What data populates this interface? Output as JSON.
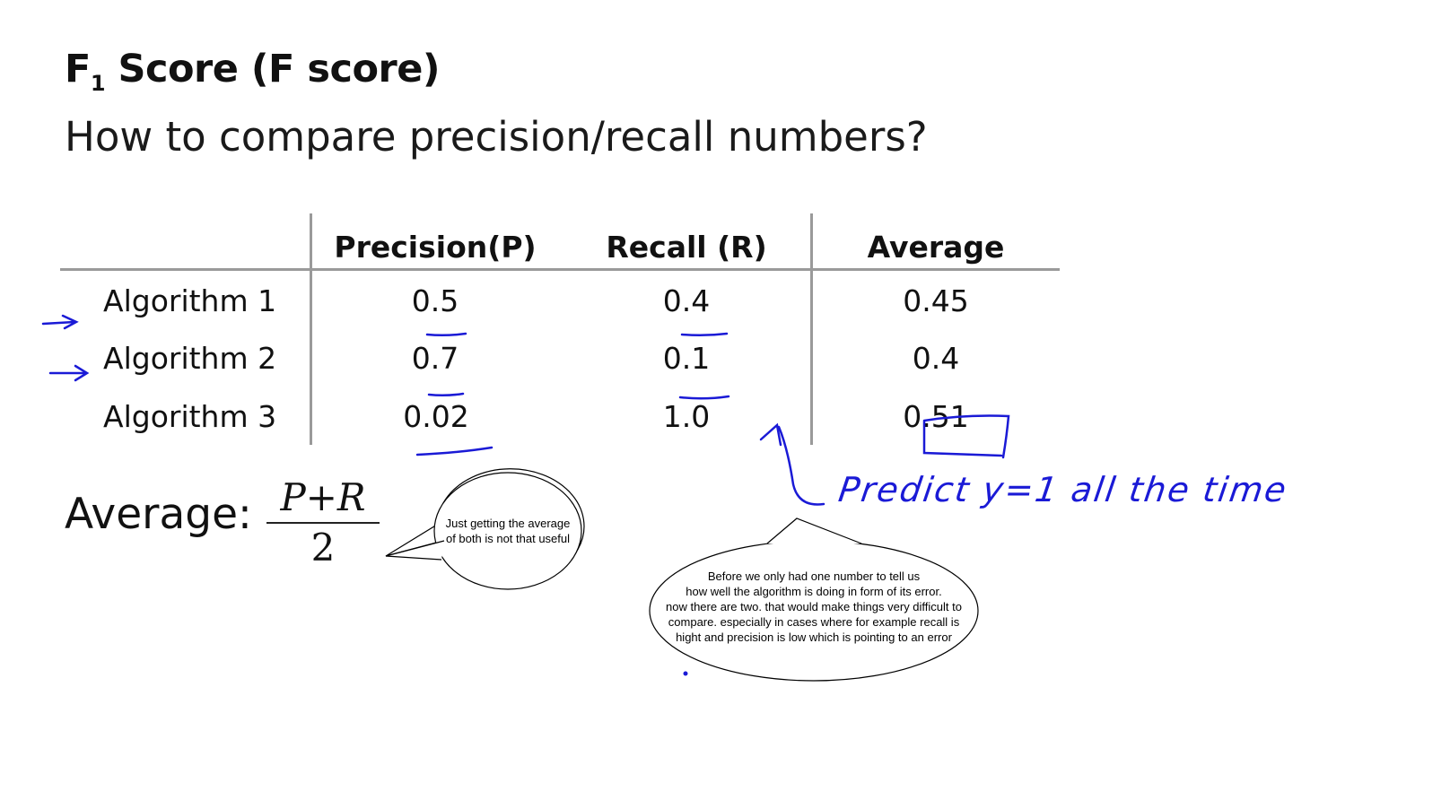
{
  "slide": {
    "title_main": "F",
    "title_sub": "1",
    "title_rest": " Score (F score)",
    "subtitle": "How to compare precision/recall numbers?"
  },
  "table": {
    "headers": [
      "Precision(P)",
      "Recall (R)",
      "Average"
    ],
    "rows": [
      {
        "label": "Algorithm 1",
        "precision": "0.5",
        "recall": "0.4",
        "average": "0.45"
      },
      {
        "label": "Algorithm 2",
        "precision": "0.7",
        "recall": "0.1",
        "average": "0.4"
      },
      {
        "label": "Algorithm 3",
        "precision": "0.02",
        "recall": "1.0",
        "average": "0.51"
      }
    ]
  },
  "formula": {
    "label": "Average:",
    "numerator": "P+R",
    "denominator": "2"
  },
  "annotations": {
    "handwriting": "Predict y=1 all the time",
    "bubble_small": "Just getting the average\nof both is not that useful",
    "bubble_large": "Before we only had one number to tell us\nhow well the algorithm is doing in form of its error.\nnow there are two. that would make things very difficult to\ncompare. especially in cases where for example recall is\nhight and precision is low which is pointing to an error"
  },
  "colors": {
    "ink": "#1a1ad6",
    "grid": "#9a9a9a"
  }
}
